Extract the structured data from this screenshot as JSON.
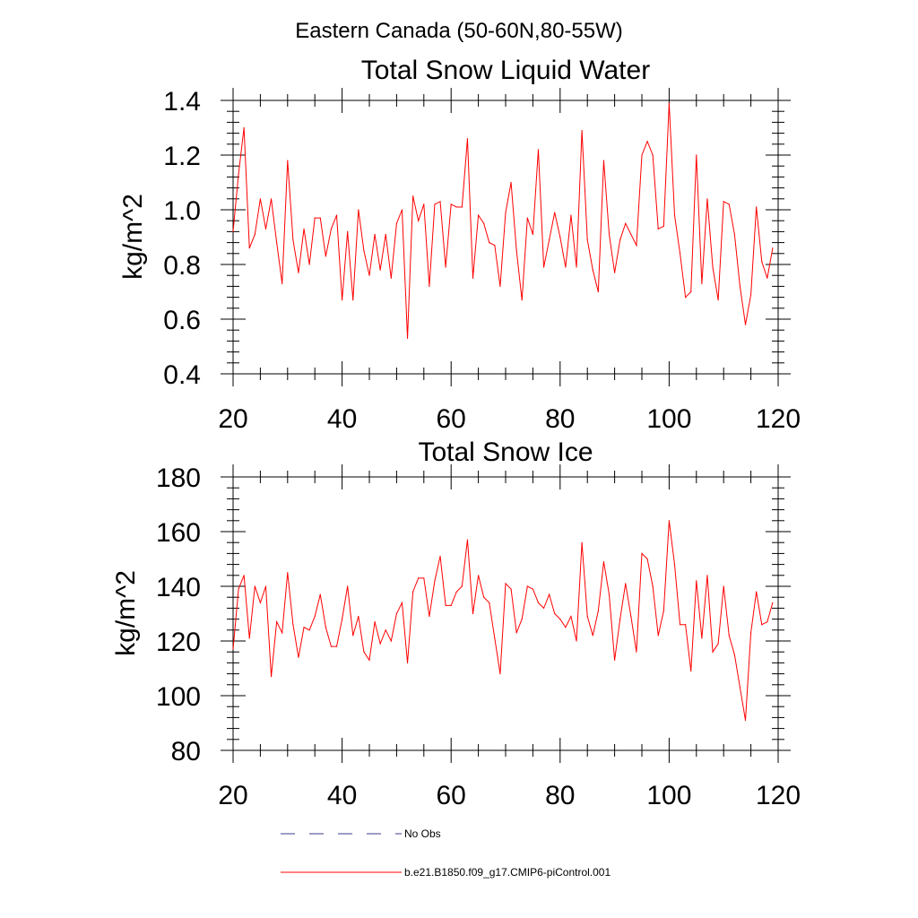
{
  "figure": {
    "title": "Eastern Canada (50-60N,80-55W)",
    "legend": [
      {
        "label": "No Obs",
        "color": "#3b3b8f",
        "style": "dashed"
      },
      {
        "label": "b.e21.B1850.f09_g17.CMIP6-piControl.001",
        "color": "#ff0000",
        "style": "solid"
      }
    ]
  },
  "chart_data": [
    {
      "type": "line",
      "title": "Total Snow Liquid Water",
      "xlabel": "",
      "ylabel": "kg/m^2",
      "xlim": [
        20,
        120
      ],
      "ylim": [
        0.4,
        1.4
      ],
      "xticks": [
        "20",
        "40",
        "60",
        "80",
        "100",
        "120"
      ],
      "yticks": [
        "0.4",
        "0.6",
        "0.8",
        "1.0",
        "1.2",
        "1.4"
      ],
      "series": [
        {
          "name": "b.e21.B1850.f09_g17.CMIP6-piControl.001",
          "color": "#ff0000",
          "x_start": 20,
          "values": [
            0.92,
            1.13,
            1.3,
            0.86,
            0.91,
            1.04,
            0.93,
            1.04,
            0.88,
            0.73,
            1.18,
            0.89,
            0.77,
            0.93,
            0.8,
            0.97,
            0.97,
            0.83,
            0.93,
            0.98,
            0.67,
            0.92,
            0.67,
            1.0,
            0.85,
            0.76,
            0.91,
            0.78,
            0.91,
            0.75,
            0.95,
            1.0,
            0.53,
            1.05,
            0.96,
            1.02,
            0.72,
            1.02,
            1.03,
            0.79,
            1.02,
            1.01,
            1.01,
            1.26,
            0.75,
            0.98,
            0.95,
            0.88,
            0.87,
            0.72,
            0.99,
            1.1,
            0.85,
            0.67,
            0.97,
            0.91,
            1.22,
            0.79,
            0.89,
            0.99,
            0.9,
            0.79,
            0.98,
            0.79,
            1.29,
            0.89,
            0.78,
            0.7,
            1.18,
            0.91,
            0.77,
            0.89,
            0.95,
            0.91,
            0.87,
            1.2,
            1.25,
            1.2,
            0.93,
            0.94,
            1.39,
            0.98,
            0.84,
            0.68,
            0.7,
            1.2,
            0.73,
            1.04,
            0.79,
            0.67,
            1.03,
            1.02,
            0.91,
            0.72,
            0.58,
            0.69,
            1.01,
            0.81,
            0.75,
            0.86
          ]
        }
      ]
    },
    {
      "type": "line",
      "title": "Total Snow Ice",
      "xlabel": "",
      "ylabel": "kg/m^2",
      "xlim": [
        20,
        120
      ],
      "ylim": [
        80,
        180
      ],
      "xticks": [
        "20",
        "40",
        "60",
        "80",
        "100",
        "120"
      ],
      "yticks": [
        "80",
        "100",
        "120",
        "140",
        "160",
        "180"
      ],
      "series": [
        {
          "name": "b.e21.B1850.f09_g17.CMIP6-piControl.001",
          "color": "#ff0000",
          "x_start": 20,
          "values": [
            117,
            139,
            144,
            121,
            140,
            134,
            140,
            107,
            127,
            123,
            145,
            126,
            114,
            125,
            124,
            129,
            137,
            125,
            118,
            118,
            128,
            140,
            122,
            129,
            116,
            113,
            127,
            119,
            124,
            120,
            130,
            134,
            112,
            138,
            143,
            143,
            129,
            142,
            151,
            133,
            133,
            138,
            140,
            157,
            130,
            144,
            136,
            134,
            121,
            108,
            141,
            139,
            123,
            128,
            140,
            139,
            134,
            132,
            137,
            130,
            128,
            125,
            129,
            120,
            156,
            129,
            122,
            131,
            149,
            137,
            113,
            128,
            141,
            129,
            116,
            152,
            150,
            140,
            122,
            131,
            164,
            148,
            126,
            126,
            109,
            142,
            121,
            144,
            116,
            119,
            140,
            122,
            115,
            103,
            91,
            123,
            138,
            126,
            127,
            134
          ]
        }
      ]
    }
  ]
}
